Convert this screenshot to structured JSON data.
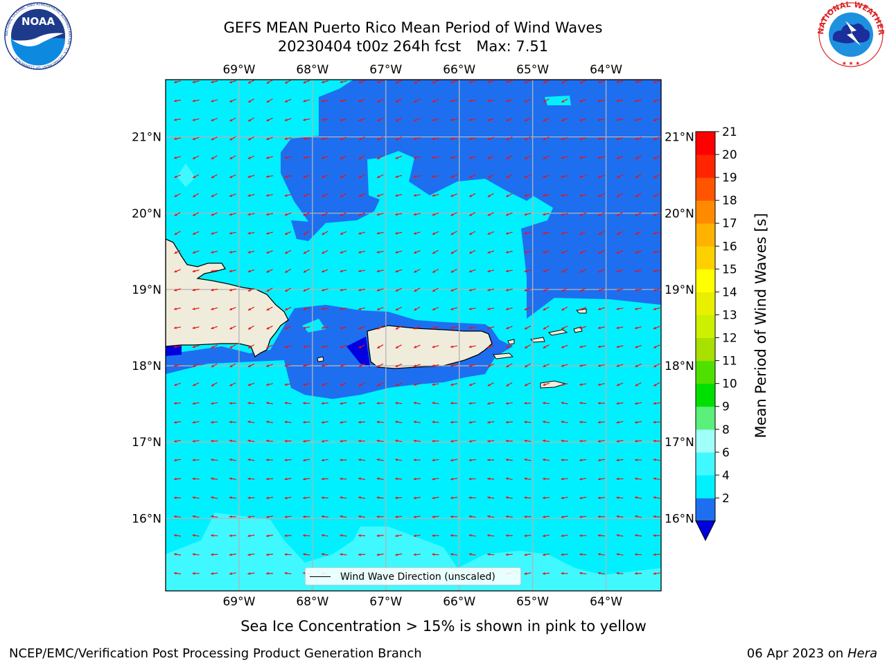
{
  "header": {
    "title": "GEFS MEAN Puerto Rico Mean Period of Wind Waves",
    "run": "20230404 t00z 264h fcst",
    "max_label": "Max: 7.51"
  },
  "logos": {
    "noaa": {
      "text": "NOAA",
      "ring_text": "NATIONAL OCEANIC AND ATMOSPHERIC ADMINISTRATION · U.S. DEPARTMENT OF COMMERCE ·"
    },
    "nws": {
      "ring_text": "NATIONAL WEATHER SERVICE"
    }
  },
  "map": {
    "lon_ticks": [
      "69°W",
      "68°W",
      "67°W",
      "66°W",
      "65°W",
      "64°W"
    ],
    "lat_ticks": [
      "21°N",
      "20°N",
      "19°N",
      "18°N",
      "17°N",
      "16°N"
    ],
    "lon_values": [
      -69,
      -68,
      -67,
      -66,
      -65,
      -64
    ],
    "lat_values": [
      21,
      20,
      19,
      18,
      17,
      16
    ],
    "extent": {
      "lon_min": -70,
      "lon_max": -63.25,
      "lat_min": 15.05,
      "lat_max": 21.75
    },
    "land_color": "#efecdc",
    "arrow_color": "#ee1111",
    "legend_label": "Wind Wave Direction (unscaled)"
  },
  "colorbar": {
    "label": "Mean Period of Wind Waves [s]",
    "ticks": [
      "21",
      "20",
      "19",
      "18",
      "17",
      "16",
      "15",
      "14",
      "13",
      "12",
      "11",
      "10",
      "9",
      "8",
      "6",
      "4",
      "2"
    ],
    "colors": [
      "#0000e0",
      "#1e6ff0",
      "#00f0ff",
      "#40f8ff",
      "#a0fff8",
      "#5af079",
      "#00e000",
      "#50e000",
      "#a8e000",
      "#ccf000",
      "#e8f000",
      "#ffff00",
      "#ffd000",
      "#ffb300",
      "#ff8a00",
      "#ff5400",
      "#ff2500",
      "#ff0000"
    ]
  },
  "note": "Sea Ice Concentration > 15% is shown in pink to yellow",
  "footer": {
    "left": "NCEP/EMC/Verification Post Processing Product Generation Branch",
    "date": "06 Apr 2023 on",
    "machine": "Hera"
  }
}
